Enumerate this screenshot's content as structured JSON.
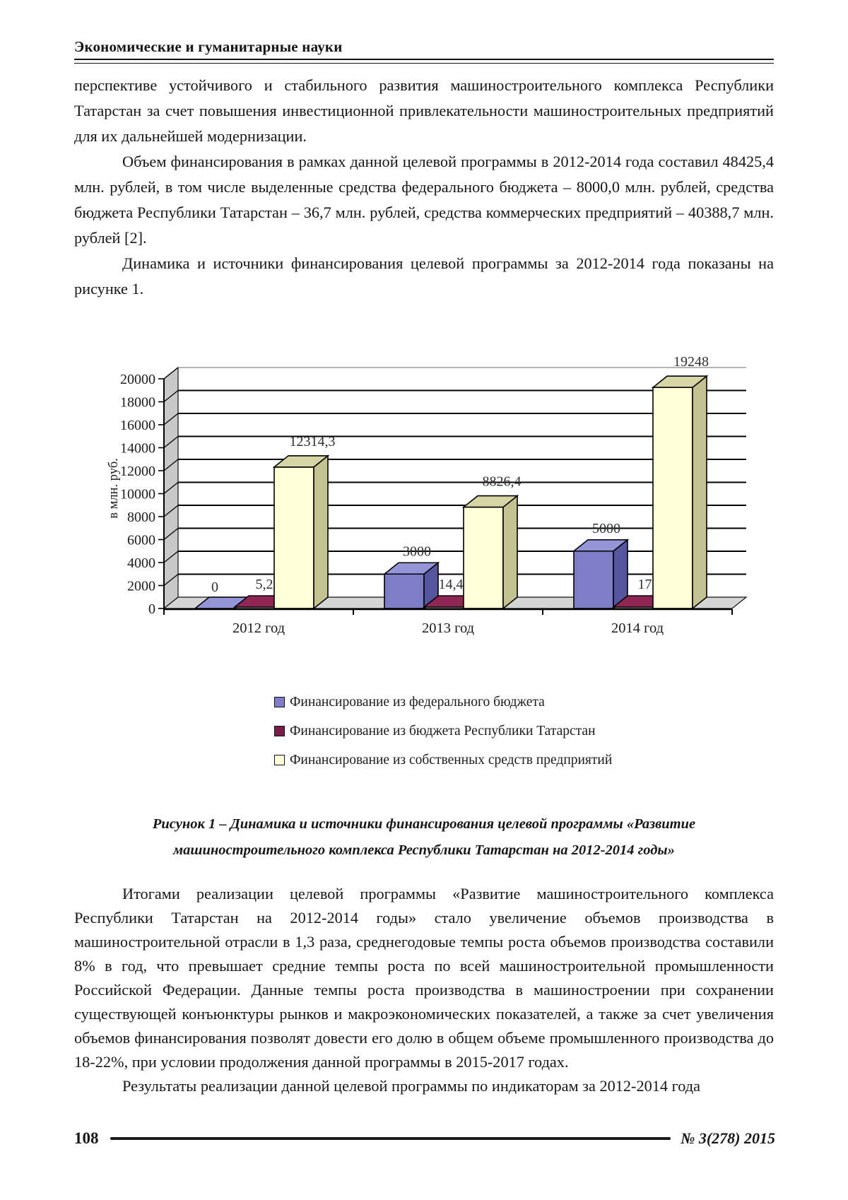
{
  "header": {
    "title": "Экономические и гуманитарные науки"
  },
  "body": {
    "p1": "перспективе устойчивого и стабильного развития машиностроительного комплекса Республики Татарстан за счет повышения инвестиционной привлекательности машиностроительных предприятий для их дальнейшей модернизации.",
    "p2": "Объем финансирования в рамках данной целевой программы в 2012-2014 года составил 48425,4 млн. рублей, в том числе выделенные средства федерального бюджета – 8000,0 млн. рублей, средства бюджета Республики Татарстан – 36,7 млн. рублей, средства коммерческих предприятий – 40388,7 млн. рублей [2].",
    "p3": "Динамика и источники финансирования целевой программы за 2012-2014 года показаны на рисунке 1.",
    "p4": "Итогами реализации целевой программы «Развитие машиностроительного комплекса Республики Татарстан на 2012-2014 годы» стало увеличение объемов производства в машиностроительной отрасли в 1,3 раза, среднегодовые темпы роста объемов производства составили 8% в год, что превышает средние темпы роста по всей машиностроительной промышленности Российской Федерации. Данные темпы роста производства в машиностроении при сохранении существующей конъюнктуры рынков и макроэкономических показателей, а также за счет увеличения объемов финансирования позволят довести его долю в общем объеме промышленного производства до 18-22%, при условии продолжения данной программы в 2015-2017 годах.",
    "p5": "Результаты реализации данной целевой программы по индикаторам за 2012-2014 года"
  },
  "figure": {
    "caption_line1": "Рисунок 1 – Динамика и источники финансирования целевой программы «Развитие",
    "caption_line2": "машиностроительного комплекса Республики Татарстан на 2012-2014 годы»"
  },
  "chart_data": {
    "type": "bar",
    "style": "3d-column",
    "categories": [
      "2012 год",
      "2013 год",
      "2014 год"
    ],
    "series": [
      {
        "name": "Финансирование из федерального бюджета",
        "values": [
          0,
          3000,
          5000
        ],
        "labels": [
          "0",
          "3000",
          "5000"
        ],
        "color": "#7e7ec6",
        "color_top": "#9494d8",
        "color_side": "#56569e"
      },
      {
        "name": "Финансирование из бюджета Республики Татарстан",
        "values": [
          5.2,
          14.4,
          17.1
        ],
        "labels": [
          "5,2",
          "14,4",
          "17,1"
        ],
        "color": "#7b1c44",
        "color_top": "#8f2653",
        "color_side": "#58102f"
      },
      {
        "name": "Финансирование из собственных средств предприятий",
        "values": [
          12314.3,
          8826.4,
          19248
        ],
        "labels": [
          "12314,3",
          "8826,4",
          "19248"
        ],
        "color": "#ffffd8",
        "color_top": "#d6d6a4",
        "color_side": "#c3c391"
      }
    ],
    "ylabel": "в млн. руб.",
    "ylim": [
      0,
      20000
    ],
    "ytick_step": 2000,
    "grid": true,
    "legend_position": "bottom",
    "wall_color": "#c8c8c8",
    "floor_color": "#d5d5d5"
  },
  "footer": {
    "page_number": "108",
    "issue": "№ 3(278) 2015"
  }
}
